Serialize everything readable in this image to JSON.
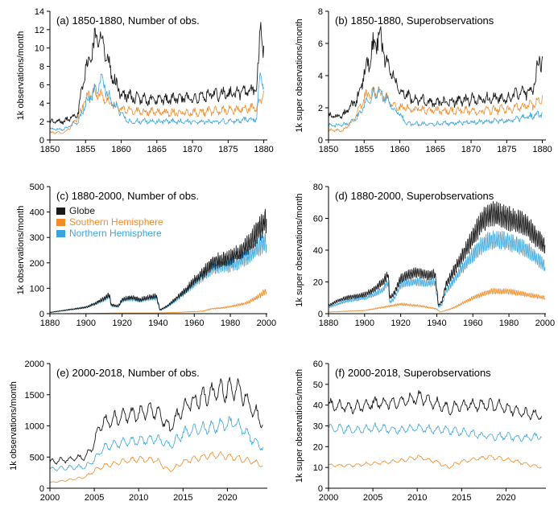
{
  "colors": {
    "globe": "#1a1a1a",
    "southern": "#f28c28",
    "northern": "#3aa6dd",
    "axis": "#000000"
  },
  "footer_text": "",
  "chart_data": [
    {
      "id": "a",
      "type": "line",
      "title": "(a) 1850-1880, Number of obs.",
      "ylabel": "1k observations/month",
      "xlim": [
        1850,
        1880.5
      ],
      "ylim": [
        0,
        14
      ],
      "xticks": [
        1850,
        1855,
        1860,
        1865,
        1870,
        1875,
        1880
      ],
      "yticks": [
        0,
        2,
        4,
        6,
        8,
        10,
        12,
        14
      ],
      "seasonal_amplitude": 0.08,
      "noise": 0.1,
      "series": [
        {
          "key": "globe",
          "x": [
            1850,
            1852,
            1853,
            1854,
            1854.5,
            1855,
            1856,
            1857,
            1857.5,
            1858,
            1859,
            1860,
            1862,
            1865,
            1868,
            1870,
            1872,
            1875,
            1877,
            1879,
            1879.6,
            1880
          ],
          "y": [
            2.0,
            2.0,
            2.5,
            3.0,
            5.5,
            7.5,
            10.0,
            12.0,
            10.5,
            8.5,
            6.5,
            5.0,
            4.5,
            4.3,
            4.5,
            4.5,
            4.8,
            5.0,
            5.2,
            5.5,
            12.5,
            9.8
          ]
        },
        {
          "key": "southern",
          "x": [
            1850,
            1852,
            1853,
            1854,
            1855,
            1856,
            1857,
            1858,
            1860,
            1865,
            1870,
            1875,
            1879,
            1880
          ],
          "y": [
            0.8,
            0.8,
            1.5,
            2.5,
            4.5,
            5.2,
            5.0,
            4.2,
            3.3,
            3.0,
            3.0,
            3.2,
            3.5,
            5.2
          ]
        },
        {
          "key": "northern",
          "x": [
            1850,
            1852,
            1854,
            1855,
            1856,
            1857,
            1857.5,
            1858,
            1859,
            1860,
            1861,
            1865,
            1870,
            1875,
            1879,
            1879.6,
            1880
          ],
          "y": [
            1.2,
            1.2,
            2.0,
            4.0,
            5.0,
            6.0,
            6.5,
            5.0,
            3.8,
            3.0,
            2.0,
            2.0,
            2.0,
            2.0,
            2.3,
            8.0,
            5.5
          ]
        }
      ]
    },
    {
      "id": "b",
      "type": "line",
      "title": "(b) 1850-1880, Superobservations",
      "ylabel": "1k super observations/month",
      "xlim": [
        1850,
        1880.5
      ],
      "ylim": [
        0,
        8
      ],
      "xticks": [
        1850,
        1855,
        1860,
        1865,
        1870,
        1875,
        1880
      ],
      "yticks": [
        0,
        2,
        4,
        6,
        8
      ],
      "seasonal_amplitude": 0.08,
      "noise": 0.1,
      "series": [
        {
          "key": "globe",
          "x": [
            1850,
            1852,
            1853,
            1854,
            1855,
            1856,
            1857,
            1857.5,
            1858,
            1859,
            1860,
            1862,
            1865,
            1870,
            1875,
            1878,
            1879,
            1879.5,
            1880
          ],
          "y": [
            1.5,
            1.5,
            2.0,
            2.5,
            4.0,
            5.5,
            6.3,
            6.0,
            5.0,
            4.0,
            3.0,
            2.5,
            2.3,
            2.5,
            2.6,
            3.0,
            3.5,
            5.0,
            4.8
          ]
        },
        {
          "key": "southern",
          "x": [
            1850,
            1852,
            1853,
            1854,
            1855,
            1856,
            1857,
            1858,
            1860,
            1865,
            1870,
            1875,
            1879,
            1880
          ],
          "y": [
            0.6,
            0.6,
            1.0,
            1.6,
            2.6,
            3.0,
            3.0,
            2.6,
            2.0,
            1.8,
            1.8,
            1.9,
            2.2,
            2.6
          ]
        },
        {
          "key": "northern",
          "x": [
            1850,
            1852,
            1854,
            1855,
            1856,
            1857,
            1858,
            1859,
            1860,
            1861,
            1865,
            1870,
            1875,
            1880
          ],
          "y": [
            0.9,
            0.9,
            1.4,
            2.2,
            2.7,
            3.0,
            2.7,
            2.0,
            1.6,
            1.0,
            1.0,
            1.1,
            1.2,
            1.6
          ]
        }
      ]
    },
    {
      "id": "c",
      "type": "line",
      "title": "(c) 1880-2000, Number of obs.",
      "ylabel": "1k observations/month",
      "xlim": [
        1880,
        2000.5
      ],
      "ylim": [
        0,
        500
      ],
      "xticks": [
        1880,
        1900,
        1920,
        1940,
        1960,
        1980,
        2000
      ],
      "yticks": [
        0,
        100,
        200,
        300,
        400,
        500
      ],
      "seasonal_amplitude": 0.1,
      "noise": 0.06,
      "legend": [
        {
          "key": "globe",
          "label": "Globe"
        },
        {
          "key": "southern",
          "label": "Southern Hemisphere"
        },
        {
          "key": "northern",
          "label": "Northern Hemisphere"
        }
      ],
      "series": [
        {
          "key": "globe",
          "x": [
            1880,
            1890,
            1900,
            1905,
            1910,
            1913,
            1914,
            1918,
            1920,
            1925,
            1930,
            1935,
            1939,
            1941,
            1945,
            1950,
            1955,
            1960,
            1965,
            1970,
            1975,
            1980,
            1985,
            1990,
            1995,
            2000
          ],
          "y": [
            5,
            15,
            25,
            40,
            60,
            75,
            35,
            30,
            55,
            65,
            55,
            65,
            70,
            15,
            30,
            60,
            90,
            130,
            160,
            200,
            210,
            220,
            240,
            270,
            320,
            370
          ]
        },
        {
          "key": "southern",
          "x": [
            1880,
            1900,
            1920,
            1940,
            1950,
            1960,
            1965,
            1970,
            1975,
            1980,
            1985,
            1990,
            1995,
            2000
          ],
          "y": [
            0,
            1,
            3,
            3,
            5,
            8,
            10,
            20,
            22,
            28,
            35,
            45,
            65,
            90
          ]
        },
        {
          "key": "northern",
          "x": [
            1880,
            1890,
            1900,
            1905,
            1910,
            1913,
            1914,
            1918,
            1920,
            1925,
            1930,
            1935,
            1939,
            1941,
            1945,
            1950,
            1955,
            1960,
            1965,
            1970,
            1975,
            1980,
            1985,
            1990,
            1995,
            2000
          ],
          "y": [
            5,
            15,
            25,
            38,
            55,
            68,
            30,
            28,
            50,
            58,
            50,
            60,
            62,
            12,
            27,
            55,
            85,
            120,
            150,
            180,
            185,
            190,
            205,
            225,
            260,
            280
          ]
        }
      ]
    },
    {
      "id": "d",
      "type": "line",
      "title": "(d) 1880-2000, Superobservations",
      "ylabel": "1k super observations/month",
      "xlim": [
        1880,
        2000.5
      ],
      "ylim": [
        0,
        80
      ],
      "xticks": [
        1880,
        1900,
        1920,
        1940,
        1960,
        1980,
        2000
      ],
      "yticks": [
        0,
        20,
        40,
        60,
        80
      ],
      "seasonal_amplitude": 0.1,
      "noise": 0.04,
      "series": [
        {
          "key": "globe",
          "x": [
            1880,
            1885,
            1890,
            1900,
            1905,
            1910,
            1913,
            1914,
            1916,
            1920,
            1925,
            1930,
            1935,
            1939,
            1941,
            1943,
            1945,
            1950,
            1955,
            1960,
            1965,
            1970,
            1975,
            1980,
            1985,
            1990,
            1995,
            2000
          ],
          "y": [
            5,
            8,
            10,
            12,
            15,
            20,
            25,
            10,
            12,
            22,
            25,
            26,
            24,
            25,
            5,
            8,
            18,
            28,
            38,
            48,
            58,
            63,
            62,
            60,
            58,
            55,
            48,
            43
          ]
        },
        {
          "key": "southern",
          "x": [
            1880,
            1900,
            1910,
            1920,
            1930,
            1940,
            1942,
            1945,
            1950,
            1955,
            1960,
            1965,
            1970,
            1975,
            1980,
            1985,
            1990,
            1995,
            2000
          ],
          "y": [
            1,
            2,
            4,
            6,
            5,
            3,
            1,
            2,
            4,
            7,
            10,
            12,
            14,
            14,
            14,
            13,
            12,
            11,
            10
          ]
        },
        {
          "key": "northern",
          "x": [
            1880,
            1885,
            1890,
            1900,
            1905,
            1910,
            1913,
            1914,
            1916,
            1920,
            1925,
            1930,
            1935,
            1939,
            1941,
            1943,
            1945,
            1950,
            1955,
            1960,
            1965,
            1970,
            1975,
            1980,
            1985,
            1990,
            1995,
            2000
          ],
          "y": [
            4,
            6,
            8,
            10,
            12,
            15,
            20,
            7,
            9,
            18,
            20,
            20,
            19,
            20,
            4,
            6,
            14,
            22,
            30,
            37,
            43,
            46,
            46,
            45,
            43,
            40,
            35,
            30
          ]
        }
      ]
    },
    {
      "id": "e",
      "type": "line",
      "title": "(e) 2000-2018, Number of obs.",
      "ylabel": "1k observations/month",
      "xlim": [
        2000,
        2024.5
      ],
      "ylim": [
        0,
        2000
      ],
      "xticks": [
        2000,
        2005,
        2010,
        2015,
        2020
      ],
      "yticks": [
        0,
        500,
        1000,
        1500,
        2000
      ],
      "seasonal_amplitude": 0.09,
      "noise": 0.04,
      "series": [
        {
          "key": "globe",
          "x": [
            2000,
            2002,
            2004,
            2005,
            2005.5,
            2006,
            2008,
            2010,
            2012,
            2013.5,
            2015,
            2017,
            2019,
            2021,
            2022,
            2023,
            2024
          ],
          "y": [
            420,
            460,
            500,
            700,
            980,
            1050,
            1150,
            1200,
            1250,
            950,
            1300,
            1450,
            1550,
            1600,
            1450,
            1250,
            1050
          ]
        },
        {
          "key": "southern",
          "x": [
            2000,
            2002,
            2004,
            2005,
            2006,
            2008,
            2010,
            2012,
            2013.5,
            2015,
            2017,
            2019,
            2021,
            2023,
            2024
          ],
          "y": [
            90,
            130,
            180,
            280,
            350,
            420,
            470,
            450,
            270,
            420,
            500,
            540,
            480,
            420,
            360
          ]
        },
        {
          "key": "northern",
          "x": [
            2000,
            2002,
            2004,
            2005,
            2006,
            2008,
            2010,
            2012,
            2013.5,
            2015,
            2017,
            2019,
            2021,
            2022,
            2023,
            2024
          ],
          "y": [
            310,
            330,
            340,
            450,
            650,
            730,
            760,
            800,
            680,
            880,
            950,
            1000,
            1050,
            900,
            750,
            650
          ]
        }
      ]
    },
    {
      "id": "f",
      "type": "line",
      "title": "(f) 2000-2018, Superobservations",
      "ylabel": "1k super observations/month",
      "xlim": [
        2000,
        2024.5
      ],
      "ylim": [
        0,
        60
      ],
      "xticks": [
        2000,
        2005,
        2010,
        2015,
        2020
      ],
      "yticks": [
        0,
        10,
        20,
        30,
        40,
        50,
        60
      ],
      "seasonal_amplitude": 0.06,
      "noise": 0.03,
      "series": [
        {
          "key": "globe",
          "x": [
            2000,
            2003,
            2005,
            2008,
            2010,
            2012,
            2013.5,
            2015,
            2018,
            2020,
            2022,
            2024
          ],
          "y": [
            40,
            39,
            41,
            41,
            44,
            41,
            38,
            40,
            40,
            39,
            36,
            35
          ]
        },
        {
          "key": "southern",
          "x": [
            2000,
            2003,
            2005,
            2008,
            2010,
            2012,
            2013.5,
            2015,
            2018,
            2020,
            2022,
            2024
          ],
          "y": [
            11,
            11,
            12,
            13,
            15,
            13,
            10,
            13,
            15,
            14,
            12,
            10
          ]
        },
        {
          "key": "northern",
          "x": [
            2000,
            2003,
            2005,
            2008,
            2010,
            2012,
            2013.5,
            2015,
            2018,
            2020,
            2022,
            2024
          ],
          "y": [
            29,
            28,
            29,
            28,
            29,
            28,
            28,
            27,
            25,
            25,
            24,
            25
          ]
        }
      ]
    }
  ]
}
